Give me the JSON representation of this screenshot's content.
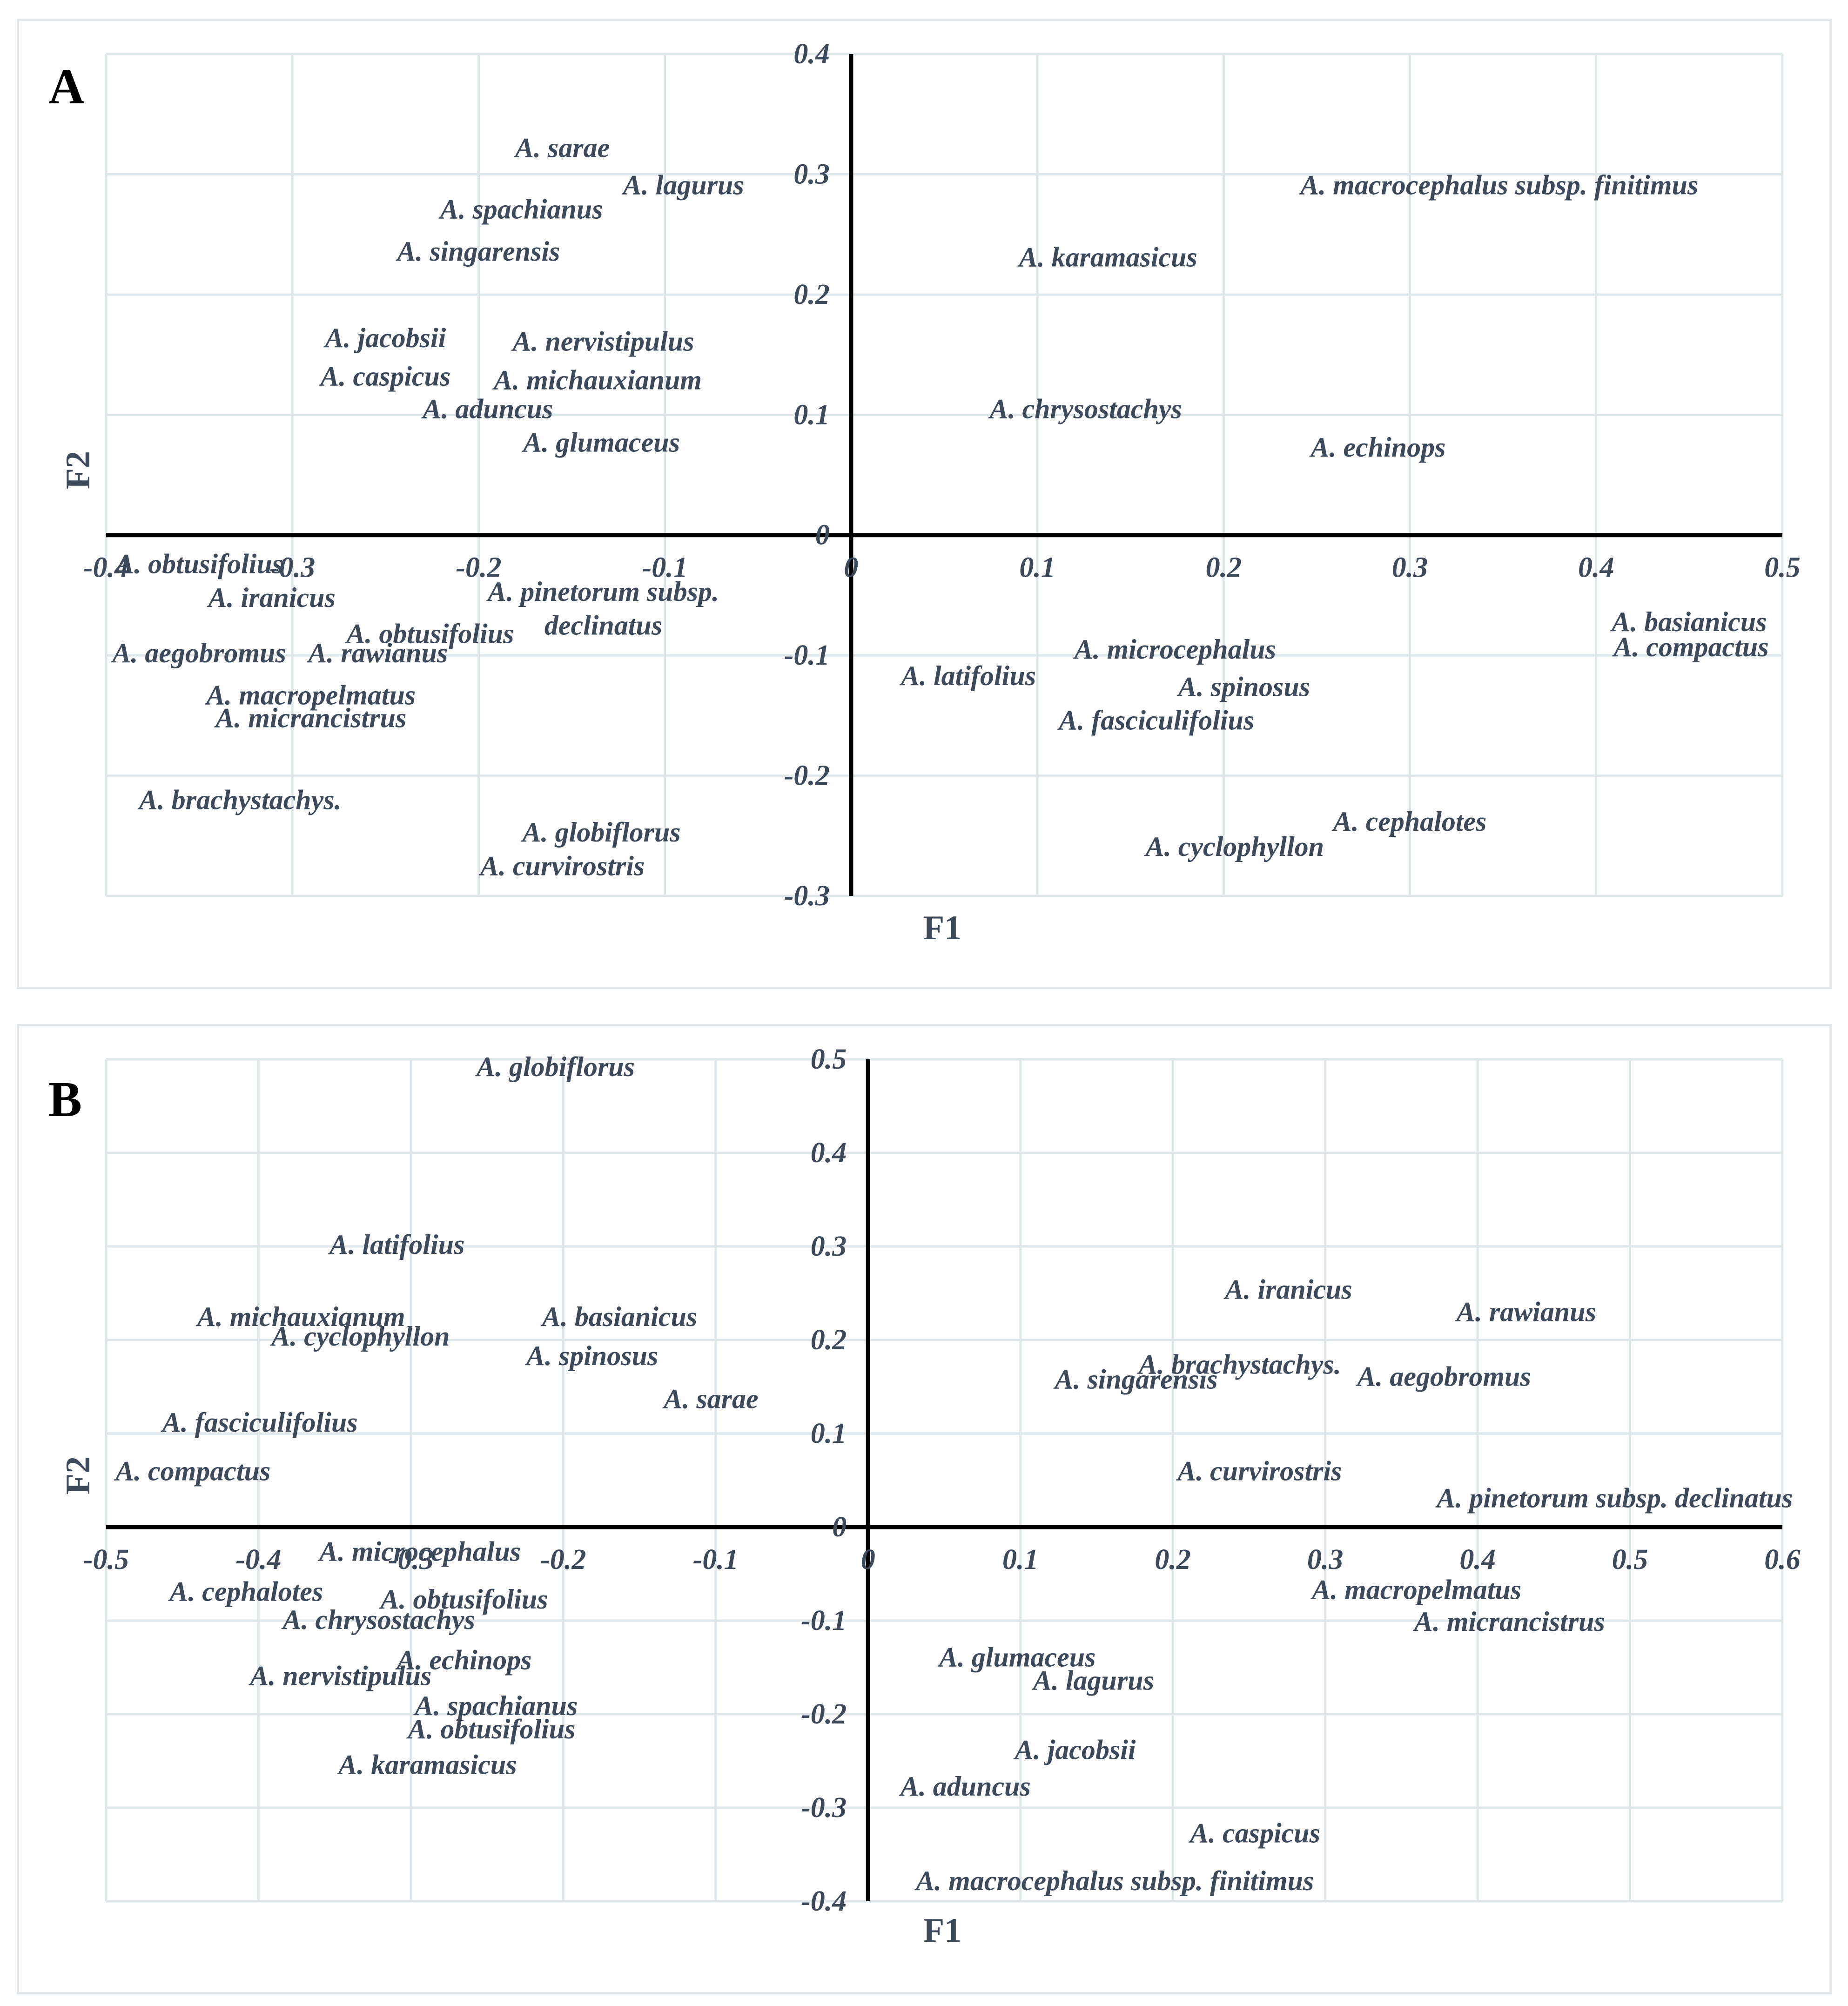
{
  "chart_data": [
    {
      "type": "scatter",
      "panel_label": "A",
      "xlabel": "F1",
      "ylabel": "F2",
      "xlim": [
        -0.4,
        0.5
      ],
      "ylim": [
        -0.3,
        0.4
      ],
      "x_ticks": [
        -0.4,
        -0.3,
        -0.2,
        -0.1,
        0,
        0.1,
        0.2,
        0.3,
        0.4,
        0.5
      ],
      "y_ticks": [
        -0.3,
        -0.2,
        -0.1,
        0,
        0.1,
        0.2,
        0.3,
        0.4
      ],
      "x_tick_labels": [
        "-0.4",
        "-0.3",
        "-0.2",
        "-0.1",
        "0",
        "0.1",
        "0.2",
        "0.3",
        "0.4",
        "0.5"
      ],
      "y_tick_labels": [
        "-0.3",
        "-0.2",
        "-0.1",
        "0",
        "0.1",
        "0.2",
        "0.3",
        "0.4"
      ],
      "points": [
        {
          "label": "A. sarae",
          "x": -0.155,
          "y": 0.322
        },
        {
          "label": "A. lagurus",
          "x": -0.09,
          "y": 0.291
        },
        {
          "label": "A. spachianus",
          "x": -0.177,
          "y": 0.271
        },
        {
          "label": "A. singarensis",
          "x": -0.2,
          "y": 0.236
        },
        {
          "label": "A. jacobsii",
          "x": -0.25,
          "y": 0.164
        },
        {
          "label": "A. nervistipulus",
          "x": -0.133,
          "y": 0.161
        },
        {
          "label": "A. caspicus",
          "x": -0.25,
          "y": 0.132
        },
        {
          "label": "A. michauxianum",
          "x": -0.136,
          "y": 0.129
        },
        {
          "label": "A. aduncus",
          "x": -0.195,
          "y": 0.105
        },
        {
          "label": "A. glumaceus",
          "x": -0.134,
          "y": 0.077
        },
        {
          "label": "A. macrocephalus subsp. finitimus",
          "x": 0.348,
          "y": 0.291
        },
        {
          "label": "A. karamasicus",
          "x": 0.138,
          "y": 0.231
        },
        {
          "label": "A. chrysostachys",
          "x": 0.126,
          "y": 0.105
        },
        {
          "label": "A. echinops",
          "x": 0.283,
          "y": 0.073
        },
        {
          "label": "A. obtusifolius",
          "x": -0.35,
          "y": -0.024
        },
        {
          "label": "A. iranicus",
          "x": -0.311,
          "y": -0.052
        },
        {
          "label": "A. pinetorum subsp.",
          "x": -0.133,
          "y": -0.047
        },
        {
          "label": "declinatus",
          "x": -0.133,
          "y": -0.075
        },
        {
          "label": "A. obtusifolius",
          "x": -0.226,
          "y": -0.082
        },
        {
          "label": "A. aegobromus",
          "x": -0.35,
          "y": -0.098
        },
        {
          "label": "A. rawianus",
          "x": -0.254,
          "y": -0.098
        },
        {
          "label": "A. macropelmatus",
          "x": -0.29,
          "y": -0.133
        },
        {
          "label": "A. micrancistrus",
          "x": -0.29,
          "y": -0.152
        },
        {
          "label": "A. brachystachys.",
          "x": -0.328,
          "y": -0.22
        },
        {
          "label": "A. globiflorus",
          "x": -0.134,
          "y": -0.247
        },
        {
          "label": "A. curvirostris",
          "x": -0.155,
          "y": -0.275
        },
        {
          "label": "A. basianicus",
          "x": 0.45,
          "y": -0.072
        },
        {
          "label": "A. compactus",
          "x": 0.451,
          "y": -0.093
        },
        {
          "label": "A. microcephalus",
          "x": 0.174,
          "y": -0.095
        },
        {
          "label": "A. latifolius",
          "x": 0.063,
          "y": -0.117
        },
        {
          "label": "A. spinosus",
          "x": 0.211,
          "y": -0.126
        },
        {
          "label": "A. fasciculifolius",
          "x": 0.164,
          "y": -0.154
        },
        {
          "label": "A. cephalotes",
          "x": 0.3,
          "y": -0.238
        },
        {
          "label": "A. cyclophyllon",
          "x": 0.206,
          "y": -0.259
        }
      ]
    },
    {
      "type": "scatter",
      "panel_label": "B",
      "xlabel": "F1",
      "ylabel": "F2",
      "xlim": [
        -0.5,
        0.6
      ],
      "ylim": [
        -0.4,
        0.5
      ],
      "x_ticks": [
        -0.5,
        -0.4,
        -0.3,
        -0.2,
        -0.1,
        0,
        0.1,
        0.2,
        0.3,
        0.4,
        0.5,
        0.6
      ],
      "y_ticks": [
        -0.4,
        -0.3,
        -0.2,
        -0.1,
        0,
        0.1,
        0.2,
        0.3,
        0.4,
        0.5
      ],
      "x_tick_labels": [
        "-0.5",
        "-0.4",
        "-0.3",
        "-0.2",
        "-0.1",
        "0",
        "0.1",
        "0.2",
        "0.3",
        "0.4",
        "0.5",
        "0.6"
      ],
      "y_tick_labels": [
        "-0.4",
        "-0.3",
        "-0.2",
        "-0.1",
        "0",
        "0.1",
        "0.2",
        "0.3",
        "0.4",
        "0.5"
      ],
      "points": [
        {
          "label": "A. globiflorus",
          "x": -0.205,
          "y": 0.492
        },
        {
          "label": "A. latifolius",
          "x": -0.309,
          "y": 0.302
        },
        {
          "label": "A. michauxianum",
          "x": -0.372,
          "y": 0.225
        },
        {
          "label": "A. basianicus",
          "x": -0.163,
          "y": 0.225
        },
        {
          "label": "A. cyclophyllon",
          "x": -0.333,
          "y": 0.204
        },
        {
          "label": "A. spinosus",
          "x": -0.181,
          "y": 0.183
        },
        {
          "label": "A. sarae",
          "x": -0.103,
          "y": 0.137
        },
        {
          "label": "A. fasciculifolius",
          "x": -0.399,
          "y": 0.112
        },
        {
          "label": "A. compactus",
          "x": -0.443,
          "y": 0.06
        },
        {
          "label": "A. iranicus",
          "x": 0.276,
          "y": 0.254
        },
        {
          "label": "A. rawianus",
          "x": 0.432,
          "y": 0.23
        },
        {
          "label": "A. brachystachys.",
          "x": 0.244,
          "y": 0.174
        },
        {
          "label": "A. singarensis",
          "x": 0.176,
          "y": 0.158
        },
        {
          "label": "A. aegobromus",
          "x": 0.378,
          "y": 0.161
        },
        {
          "label": "A. curvirostris",
          "x": 0.257,
          "y": 0.06
        },
        {
          "label": "A. pinetorum subsp. declinatus",
          "x": 0.49,
          "y": 0.031
        },
        {
          "label": "A. microcephalus",
          "x": -0.294,
          "y": -0.026
        },
        {
          "label": "A. cephalotes",
          "x": -0.408,
          "y": -0.069
        },
        {
          "label": "A. obtusifolius",
          "x": -0.265,
          "y": -0.077
        },
        {
          "label": "A. chrysostachys",
          "x": -0.321,
          "y": -0.099
        },
        {
          "label": "A. echinops",
          "x": -0.265,
          "y": -0.142
        },
        {
          "label": "A. nervistipulus",
          "x": -0.346,
          "y": -0.159
        },
        {
          "label": "A. spachianus",
          "x": -0.244,
          "y": -0.191
        },
        {
          "label": "A. obtusifolius",
          "x": -0.247,
          "y": -0.216
        },
        {
          "label": "A. karamasicus",
          "x": -0.289,
          "y": -0.254
        },
        {
          "label": "A. macropelmatus",
          "x": 0.36,
          "y": -0.067
        },
        {
          "label": "A. micrancistrus",
          "x": 0.421,
          "y": -0.101
        },
        {
          "label": "A. glumaceus",
          "x": 0.098,
          "y": -0.139
        },
        {
          "label": "A. lagurus",
          "x": 0.148,
          "y": -0.164
        },
        {
          "label": "A. jacobsii",
          "x": 0.136,
          "y": -0.238
        },
        {
          "label": "A. aduncus",
          "x": 0.064,
          "y": -0.277
        },
        {
          "label": "A. caspicus",
          "x": 0.254,
          "y": -0.327
        },
        {
          "label": "A. macrocephalus subsp. finitimus",
          "x": 0.162,
          "y": -0.378
        }
      ]
    }
  ]
}
